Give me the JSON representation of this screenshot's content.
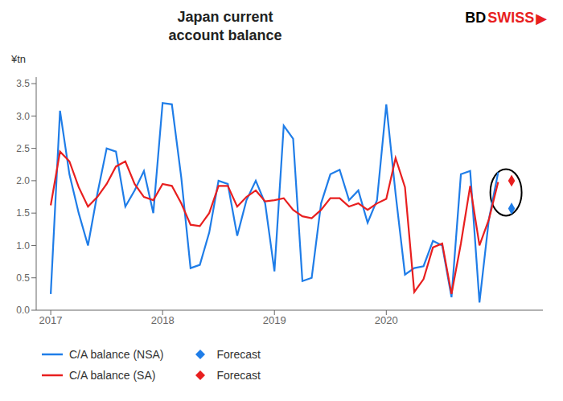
{
  "chart_data": {
    "type": "line",
    "title": "Japan current\naccount balance",
    "y_label": "¥tn",
    "grid": false,
    "logo": [
      {
        "text": "BD",
        "color": "#000000"
      },
      {
        "text": "SWISS",
        "color": "#e81f1f"
      },
      {
        "text": "▶",
        "color": "#e81f1f"
      }
    ],
    "xlim": [
      2016.87,
      2021.4
    ],
    "xticks": [
      2017,
      2018,
      2019,
      2020
    ],
    "ylim": [
      0.0,
      3.6
    ],
    "yticks": [
      {
        "value": 0.0,
        "label": "0.0"
      },
      0.5,
      {
        "value": 1.0,
        "label": "1.0"
      },
      1.5,
      {
        "value": 2.0,
        "label": "2.0"
      },
      2.5,
      {
        "value": 3.0,
        "label": "3.0"
      },
      3.5
    ],
    "x": [
      2017.0,
      2017.083,
      2017.167,
      2017.25,
      2017.333,
      2017.417,
      2017.5,
      2017.583,
      2017.667,
      2017.75,
      2017.833,
      2017.917,
      2018.0,
      2018.083,
      2018.167,
      2018.25,
      2018.333,
      2018.417,
      2018.5,
      2018.583,
      2018.667,
      2018.75,
      2018.833,
      2018.917,
      2019.0,
      2019.083,
      2019.167,
      2019.25,
      2019.333,
      2019.417,
      2019.5,
      2019.583,
      2019.667,
      2019.75,
      2019.833,
      2019.917,
      2020.0,
      2020.083,
      2020.167,
      2020.25,
      2020.333,
      2020.417,
      2020.5,
      2020.583,
      2020.667,
      2020.75,
      2020.833,
      2020.917,
      2021.0,
      2021.12
    ],
    "series": [
      {
        "name": "C/A balance (NSA)",
        "type": "line",
        "color": "#1f7de8",
        "line_style": "solid",
        "values": [
          0.25,
          3.08,
          2.1,
          1.5,
          1.0,
          1.8,
          2.5,
          2.45,
          1.6,
          1.85,
          2.15,
          1.5,
          3.2,
          3.18,
          2.05,
          0.65,
          0.7,
          1.2,
          2.0,
          1.95,
          1.15,
          1.7,
          2.0,
          1.65,
          0.6,
          2.85,
          2.65,
          0.45,
          0.5,
          1.65,
          2.1,
          2.17,
          1.7,
          1.85,
          1.35,
          1.7,
          3.18,
          1.8,
          0.55,
          0.65,
          0.68,
          1.07,
          1.0,
          0.2,
          2.1,
          2.15,
          0.12,
          1.4,
          2.13,
          null
        ]
      },
      {
        "name": "C/A balance (SA)",
        "type": "line",
        "color": "#e81f1f",
        "line_style": "solid",
        "values": [
          1.62,
          2.45,
          2.3,
          1.9,
          1.6,
          1.75,
          1.95,
          2.22,
          2.3,
          1.95,
          1.75,
          1.7,
          1.95,
          1.92,
          1.65,
          1.32,
          1.3,
          1.5,
          1.92,
          1.92,
          1.6,
          1.75,
          1.85,
          1.68,
          1.7,
          1.73,
          1.55,
          1.45,
          1.42,
          1.55,
          1.73,
          1.73,
          1.6,
          1.65,
          1.55,
          1.65,
          1.72,
          2.35,
          1.9,
          0.28,
          0.48,
          0.97,
          1.03,
          0.25,
          1.03,
          1.92,
          1.0,
          1.4,
          1.98,
          null
        ]
      },
      {
        "name": "Forecast",
        "type": "scatter",
        "marker": "diamond",
        "color": "#1f7de8",
        "values": [
          null,
          null,
          null,
          null,
          null,
          null,
          null,
          null,
          null,
          null,
          null,
          null,
          null,
          null,
          null,
          null,
          null,
          null,
          null,
          null,
          null,
          null,
          null,
          null,
          null,
          null,
          null,
          null,
          null,
          null,
          null,
          null,
          null,
          null,
          null,
          null,
          null,
          null,
          null,
          null,
          null,
          null,
          null,
          null,
          null,
          null,
          null,
          null,
          null,
          1.57
        ]
      },
      {
        "name": "Forecast",
        "type": "scatter",
        "marker": "diamond",
        "color": "#e81f1f",
        "values": [
          null,
          null,
          null,
          null,
          null,
          null,
          null,
          null,
          null,
          null,
          null,
          null,
          null,
          null,
          null,
          null,
          null,
          null,
          null,
          null,
          null,
          null,
          null,
          null,
          null,
          null,
          null,
          null,
          null,
          null,
          null,
          null,
          null,
          null,
          null,
          null,
          null,
          null,
          null,
          null,
          null,
          null,
          null,
          null,
          null,
          null,
          null,
          null,
          null,
          2.0
        ]
      }
    ],
    "ellipse": {
      "center_x": 2021.07,
      "center_y": 1.82,
      "width": 0.28,
      "height": 0.72,
      "color": "#000000"
    }
  }
}
